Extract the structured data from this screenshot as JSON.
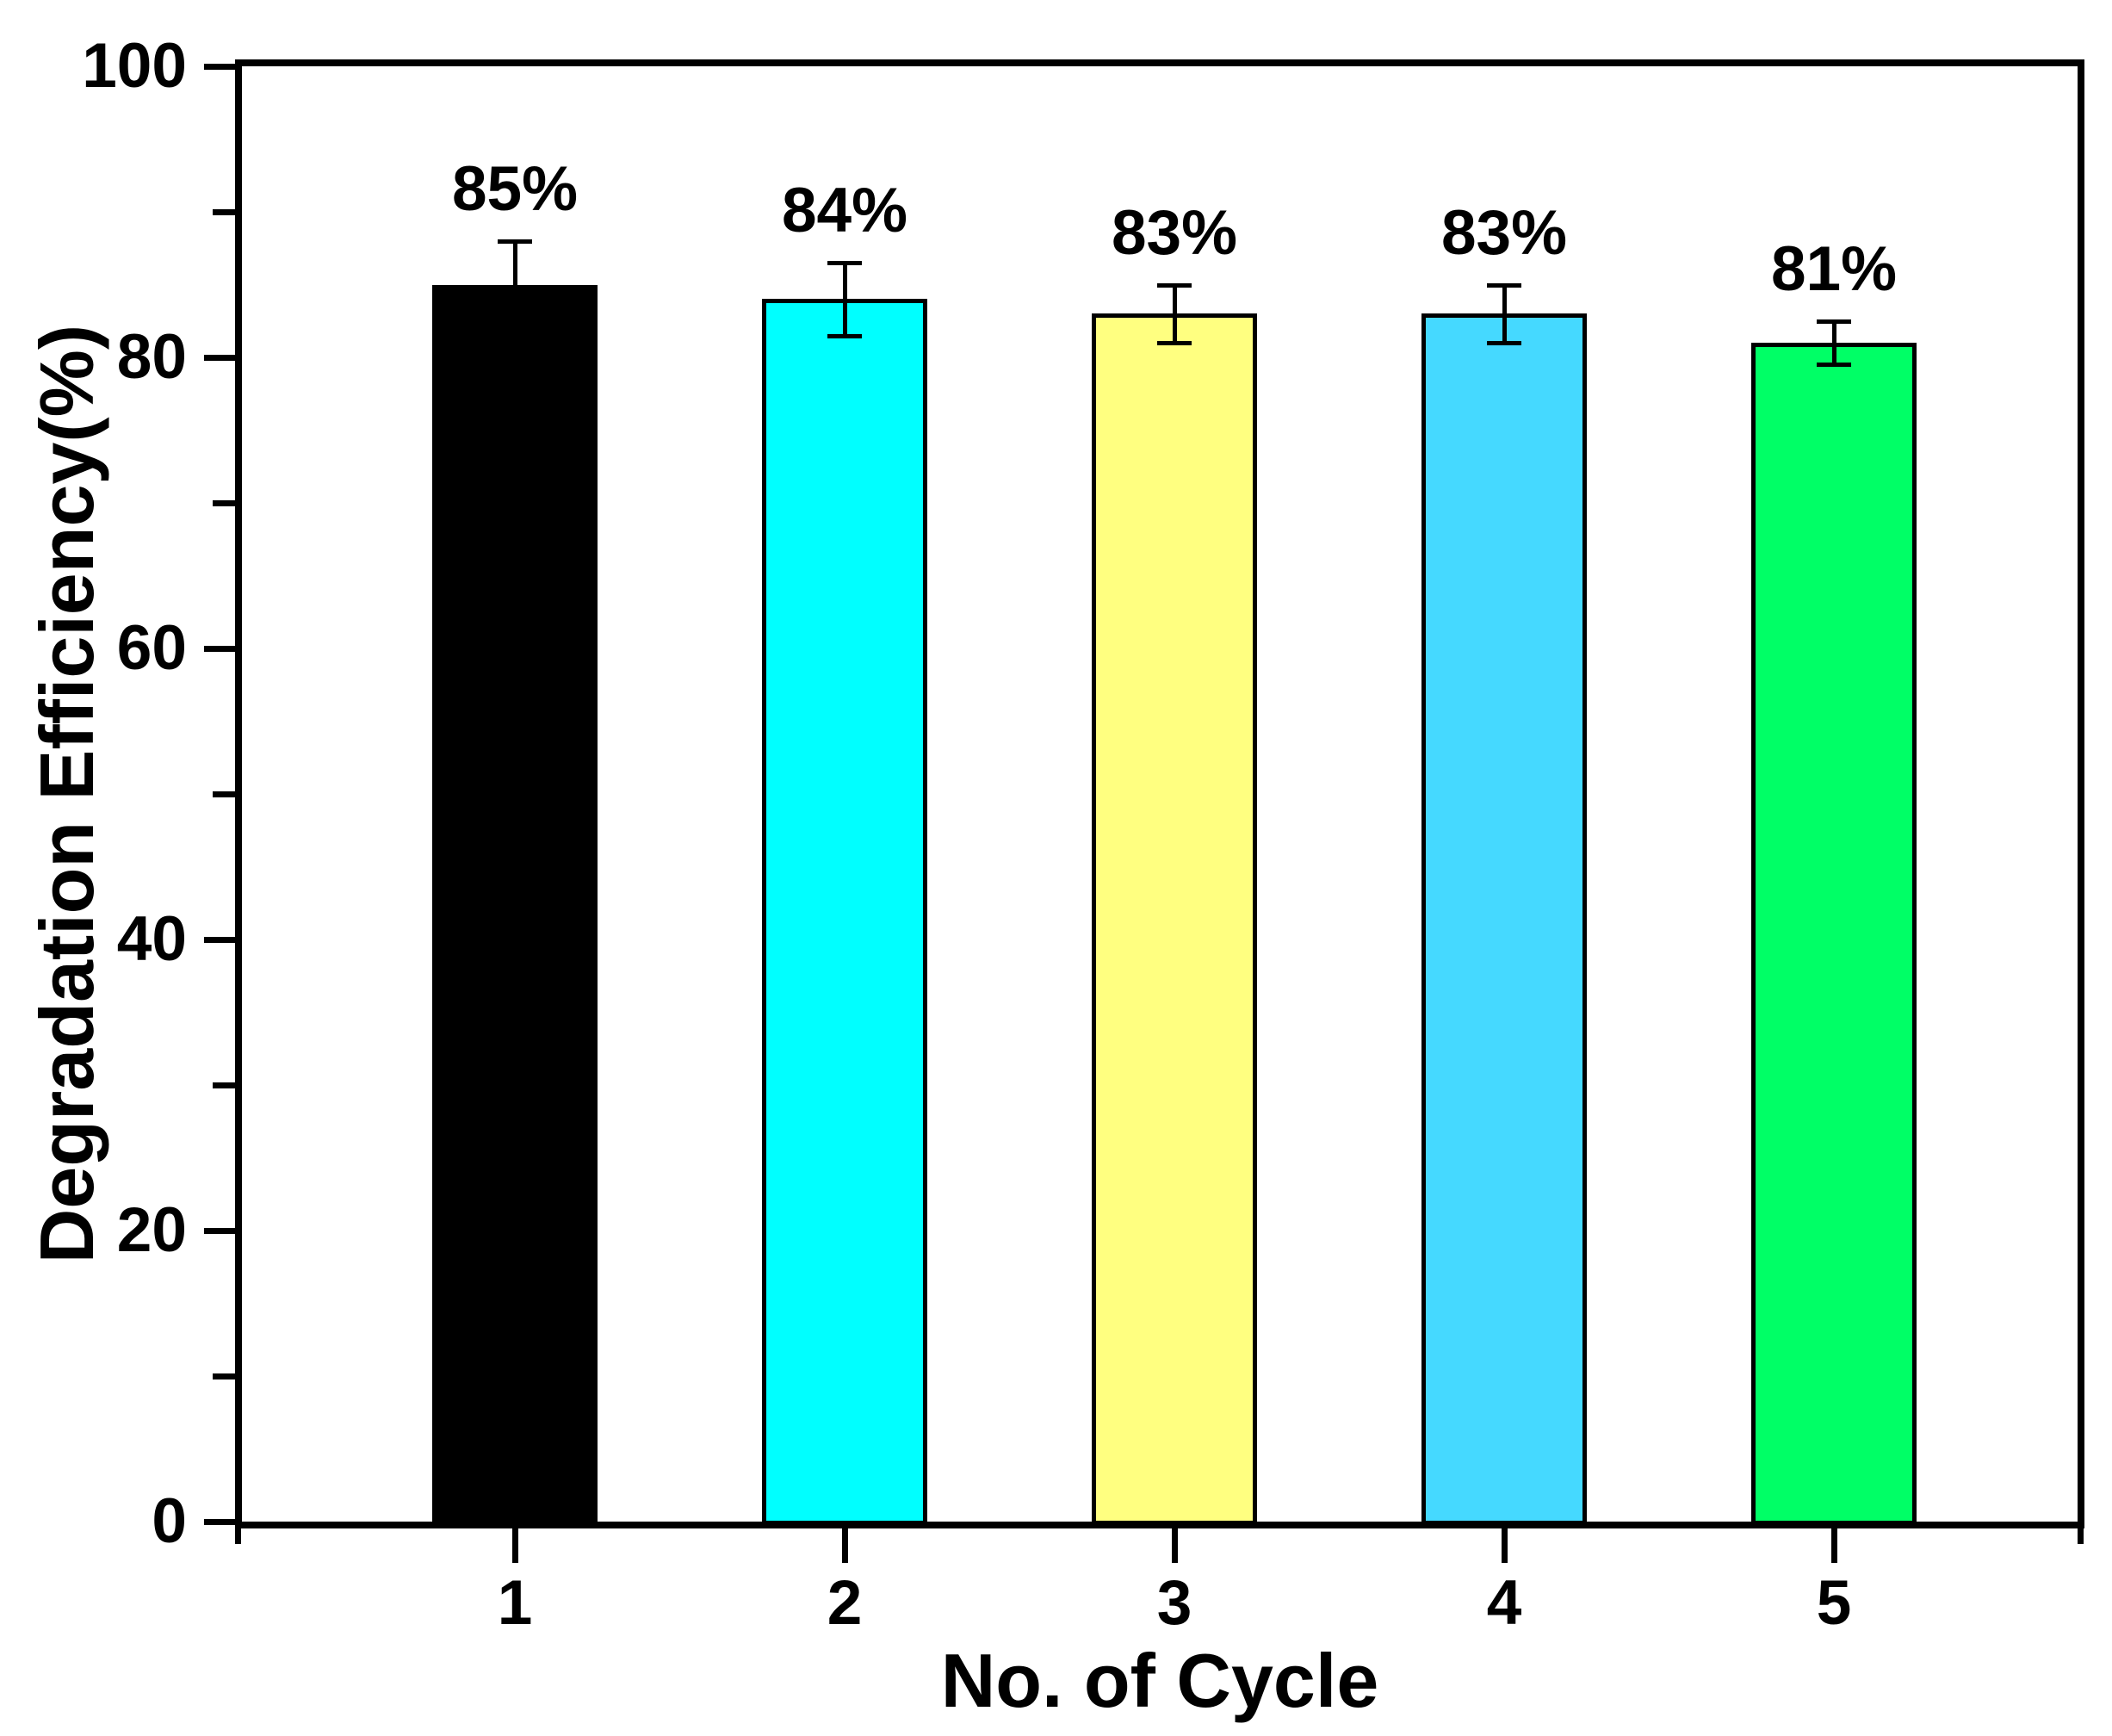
{
  "figure": {
    "background": "#FFFFFF"
  },
  "chart_data": {
    "type": "bar",
    "title": "",
    "xlabel": "No. of Cycle",
    "ylabel": "Degradation Efficiency(%)",
    "categories": [
      "1",
      "2",
      "3",
      "4",
      "5"
    ],
    "values": [
      85,
      84,
      83,
      83,
      81
    ],
    "bar_labels": [
      "85%",
      "84%",
      "83%",
      "83%",
      "81%"
    ],
    "error_plus": [
      3,
      2.5,
      2,
      2,
      1.5
    ],
    "error_minus": [
      3,
      2.5,
      2,
      2,
      1.5
    ],
    "bar_colors": [
      "#000000",
      "#00FFFF",
      "#FFFF80",
      "#45D9FF",
      "#00FF66"
    ],
    "bar_border_color": "#000000",
    "axis_color": "#000000",
    "text_color": "#000000",
    "ylim": [
      0,
      100
    ],
    "y_major_ticks": [
      0,
      20,
      40,
      60,
      80,
      100
    ],
    "y_minor_ticks": [
      10,
      30,
      50,
      70,
      90
    ],
    "grid": false,
    "legend": "none"
  }
}
